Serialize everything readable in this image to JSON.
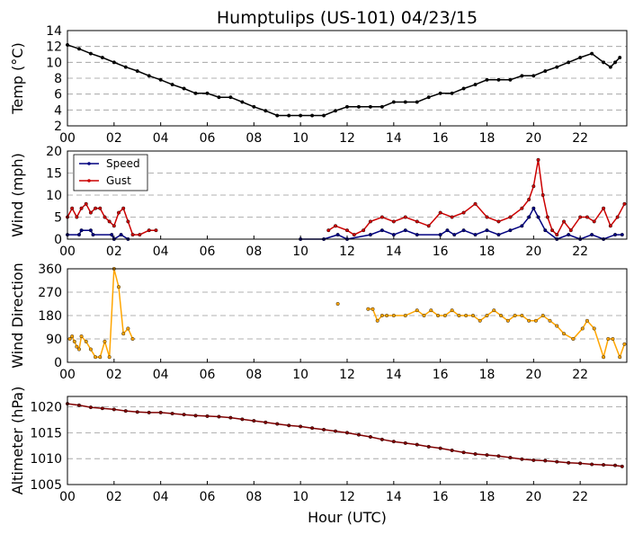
{
  "figure": {
    "title": "Humptulips (US-101) 04/23/15",
    "xlabel": "Hour (UTC)",
    "x_ticks": [
      "00",
      "02",
      "04",
      "06",
      "08",
      "10",
      "12",
      "14",
      "16",
      "18",
      "20",
      "22"
    ]
  },
  "chart_data": [
    {
      "type": "line",
      "ylabel": "Temp (°C)",
      "ylabel_parts": [
        "Temp (",
        "°",
        "C)"
      ],
      "xlim": [
        0,
        24
      ],
      "ylim": [
        2,
        14
      ],
      "y_ticks": [
        2,
        4,
        6,
        8,
        10,
        12,
        14
      ],
      "grid": true,
      "series": [
        {
          "color": "#000000",
          "marker": "dot",
          "points": [
            [
              0,
              12.2
            ],
            [
              0.5,
              11.7
            ],
            [
              1,
              11.1
            ],
            [
              1.5,
              10.6
            ],
            [
              2,
              10
            ],
            [
              2.5,
              9.4
            ],
            [
              3,
              8.9
            ],
            [
              3.5,
              8.3
            ],
            [
              4,
              7.8
            ],
            [
              4.5,
              7.2
            ],
            [
              5,
              6.7
            ],
            [
              5.5,
              6.1
            ],
            [
              6,
              6.1
            ],
            [
              6.5,
              5.6
            ],
            [
              7,
              5.6
            ],
            [
              7.5,
              5
            ],
            [
              8,
              4.4
            ],
            [
              8.5,
              3.9
            ],
            [
              9,
              3.3
            ],
            [
              9.5,
              3.3
            ],
            [
              10,
              3.3
            ],
            [
              10.5,
              3.3
            ],
            [
              11,
              3.3
            ],
            [
              11.5,
              3.9
            ],
            [
              12,
              4.4
            ],
            [
              12.5,
              4.4
            ],
            [
              13,
              4.4
            ],
            [
              13.5,
              4.4
            ],
            [
              14,
              5
            ],
            [
              14.5,
              5
            ],
            [
              15,
              5
            ],
            [
              15.5,
              5.6
            ],
            [
              16,
              6.1
            ],
            [
              16.5,
              6.1
            ],
            [
              17,
              6.7
            ],
            [
              17.5,
              7.2
            ],
            [
              18,
              7.8
            ],
            [
              18.5,
              7.8
            ],
            [
              19,
              7.8
            ],
            [
              19.5,
              8.3
            ],
            [
              20,
              8.3
            ],
            [
              20.5,
              8.9
            ],
            [
              21,
              9.4
            ],
            [
              21.5,
              10
            ],
            [
              22,
              10.6
            ],
            [
              22.5,
              11.1
            ],
            [
              23,
              10
            ],
            [
              23.3,
              9.4
            ],
            [
              23.5,
              10
            ],
            [
              23.7,
              10.6
            ]
          ]
        }
      ]
    },
    {
      "type": "line",
      "ylabel": "Wind (mph)",
      "xlim": [
        0,
        24
      ],
      "ylim": [
        0,
        20
      ],
      "y_ticks": [
        0,
        5,
        10,
        15,
        20
      ],
      "grid": true,
      "legend": "top-left",
      "series": [
        {
          "name": "Speed",
          "color": "#000080",
          "marker": "dot",
          "points": [
            [
              0,
              1
            ],
            [
              0.5,
              1
            ],
            [
              0.6,
              2
            ],
            [
              1,
              2
            ],
            [
              1.1,
              1
            ],
            [
              1.9,
              1
            ],
            [
              2,
              0
            ],
            [
              2.3,
              1
            ],
            [
              2.6,
              0
            ],
            [
              10,
              0
            ],
            [
              11,
              0
            ],
            [
              11.6,
              1
            ],
            [
              12,
              0
            ],
            [
              13,
              1
            ],
            [
              13.5,
              2
            ],
            [
              14,
              1
            ],
            [
              14.5,
              2
            ],
            [
              15,
              1
            ],
            [
              16,
              1
            ],
            [
              16.3,
              2
            ],
            [
              16.6,
              1
            ],
            [
              17,
              2
            ],
            [
              17.5,
              1
            ],
            [
              18,
              2
            ],
            [
              18.5,
              1
            ],
            [
              19,
              2
            ],
            [
              19.5,
              3
            ],
            [
              19.8,
              5
            ],
            [
              20,
              7
            ],
            [
              20.2,
              5
            ],
            [
              20.5,
              2
            ],
            [
              21,
              0
            ],
            [
              21.5,
              1
            ],
            [
              22,
              0
            ],
            [
              22.5,
              1
            ],
            [
              23,
              0
            ],
            [
              23.5,
              1
            ],
            [
              23.8,
              1
            ]
          ]
        },
        {
          "name": "Gust",
          "color": "#cc0000",
          "marker": "dot",
          "points": [
            [
              0,
              5
            ],
            [
              0.2,
              7
            ],
            [
              0.4,
              5
            ],
            [
              0.6,
              7
            ],
            [
              0.8,
              8
            ],
            [
              1,
              6
            ],
            [
              1.2,
              7
            ],
            [
              1.4,
              7
            ],
            [
              1.6,
              5
            ],
            [
              1.8,
              4
            ],
            [
              2,
              3
            ],
            [
              2.2,
              6
            ],
            [
              2.4,
              7
            ],
            [
              2.6,
              4
            ],
            [
              2.8,
              1
            ],
            [
              3.1,
              1
            ],
            [
              3.5,
              2
            ],
            [
              3.8,
              2
            ],
            [
              11.2,
              2
            ],
            [
              11.5,
              3
            ],
            [
              12,
              2
            ],
            [
              12.3,
              1
            ],
            [
              12.7,
              2
            ],
            [
              13,
              4
            ],
            [
              13.5,
              5
            ],
            [
              14,
              4
            ],
            [
              14.5,
              5
            ],
            [
              15,
              4
            ],
            [
              15.5,
              3
            ],
            [
              16,
              6
            ],
            [
              16.5,
              5
            ],
            [
              17,
              6
            ],
            [
              17.5,
              8
            ],
            [
              18,
              5
            ],
            [
              18.5,
              4
            ],
            [
              19,
              5
            ],
            [
              19.5,
              7
            ],
            [
              19.8,
              9
            ],
            [
              20,
              12
            ],
            [
              20.2,
              18
            ],
            [
              20.4,
              10
            ],
            [
              20.6,
              5
            ],
            [
              20.8,
              2
            ],
            [
              21,
              1
            ],
            [
              21.3,
              4
            ],
            [
              21.6,
              2
            ],
            [
              22,
              5
            ],
            [
              22.3,
              5
            ],
            [
              22.6,
              4
            ],
            [
              23,
              7
            ],
            [
              23.3,
              3
            ],
            [
              23.6,
              5
            ],
            [
              23.9,
              8
            ]
          ]
        }
      ]
    },
    {
      "type": "scatter",
      "ylabel": "Wind Direction",
      "xlim": [
        0,
        24
      ],
      "ylim": [
        0,
        360
      ],
      "y_ticks": [
        0,
        90,
        180,
        270,
        360
      ],
      "grid": true,
      "series": [
        {
          "color": "#ffa500",
          "marker": "dot",
          "points": [
            [
              0.1,
              90
            ],
            [
              0.2,
              100
            ],
            [
              0.3,
              80
            ],
            [
              0.4,
              60
            ],
            [
              0.5,
              50
            ],
            [
              0.6,
              100
            ],
            [
              0.8,
              80
            ],
            [
              1,
              50
            ],
            [
              1.2,
              20
            ],
            [
              1.4,
              20
            ],
            [
              1.6,
              80
            ],
            [
              1.8,
              20
            ],
            [
              2,
              360
            ],
            [
              2.2,
              290
            ],
            [
              2.4,
              110
            ],
            [
              2.6,
              130
            ],
            [
              2.8,
              90
            ],
            [
              11.6,
              225
            ],
            [
              12.9,
              205
            ],
            [
              13.1,
              205
            ],
            [
              13.3,
              160
            ],
            [
              13.5,
              180
            ],
            [
              13.7,
              180
            ],
            [
              14,
              180
            ],
            [
              14.5,
              180
            ],
            [
              15,
              200
            ],
            [
              15.3,
              180
            ],
            [
              15.6,
              200
            ],
            [
              15.9,
              180
            ],
            [
              16.2,
              180
            ],
            [
              16.5,
              200
            ],
            [
              16.8,
              180
            ],
            [
              17.1,
              180
            ],
            [
              17.4,
              180
            ],
            [
              17.7,
              160
            ],
            [
              18,
              180
            ],
            [
              18.3,
              200
            ],
            [
              18.6,
              180
            ],
            [
              18.9,
              160
            ],
            [
              19.2,
              180
            ],
            [
              19.5,
              180
            ],
            [
              19.8,
              160
            ],
            [
              20.1,
              160
            ],
            [
              20.4,
              180
            ],
            [
              20.7,
              160
            ],
            [
              21,
              140
            ],
            [
              21.3,
              110
            ],
            [
              21.7,
              90
            ],
            [
              22.1,
              130
            ],
            [
              22.3,
              160
            ],
            [
              22.6,
              130
            ],
            [
              23,
              20
            ],
            [
              23.2,
              90
            ],
            [
              23.4,
              90
            ],
            [
              23.7,
              20
            ],
            [
              23.9,
              70
            ]
          ]
        }
      ]
    },
    {
      "type": "line",
      "ylabel": "Altimeter (hPa)",
      "xlim": [
        0,
        24
      ],
      "ylim": [
        1005,
        1022
      ],
      "y_ticks": [
        1005,
        1010,
        1015,
        1020
      ],
      "grid": true,
      "series": [
        {
          "color": "#800000",
          "marker": "dot",
          "points": [
            [
              0,
              1020.6
            ],
            [
              0.5,
              1020.3
            ],
            [
              1,
              1019.9
            ],
            [
              1.5,
              1019.7
            ],
            [
              2,
              1019.5
            ],
            [
              2.5,
              1019.2
            ],
            [
              3,
              1019.0
            ],
            [
              3.5,
              1018.9
            ],
            [
              4,
              1018.9
            ],
            [
              4.5,
              1018.7
            ],
            [
              5,
              1018.5
            ],
            [
              5.5,
              1018.3
            ],
            [
              6,
              1018.2
            ],
            [
              6.5,
              1018.1
            ],
            [
              7,
              1017.9
            ],
            [
              7.5,
              1017.6
            ],
            [
              8,
              1017.3
            ],
            [
              8.5,
              1017.0
            ],
            [
              9,
              1016.7
            ],
            [
              9.5,
              1016.4
            ],
            [
              10,
              1016.2
            ],
            [
              10.5,
              1015.9
            ],
            [
              11,
              1015.6
            ],
            [
              11.5,
              1015.3
            ],
            [
              12,
              1015.0
            ],
            [
              12.5,
              1014.6
            ],
            [
              13,
              1014.2
            ],
            [
              13.5,
              1013.7
            ],
            [
              14,
              1013.3
            ],
            [
              14.5,
              1013.0
            ],
            [
              15,
              1012.7
            ],
            [
              15.5,
              1012.3
            ],
            [
              16,
              1012.0
            ],
            [
              16.5,
              1011.6
            ],
            [
              17,
              1011.2
            ],
            [
              17.5,
              1010.9
            ],
            [
              18,
              1010.7
            ],
            [
              18.5,
              1010.5
            ],
            [
              19,
              1010.2
            ],
            [
              19.5,
              1009.9
            ],
            [
              20,
              1009.7
            ],
            [
              20.5,
              1009.6
            ],
            [
              21,
              1009.4
            ],
            [
              21.5,
              1009.2
            ],
            [
              22,
              1009.1
            ],
            [
              22.5,
              1008.9
            ],
            [
              23,
              1008.8
            ],
            [
              23.5,
              1008.7
            ],
            [
              23.8,
              1008.5
            ]
          ]
        }
      ]
    }
  ]
}
